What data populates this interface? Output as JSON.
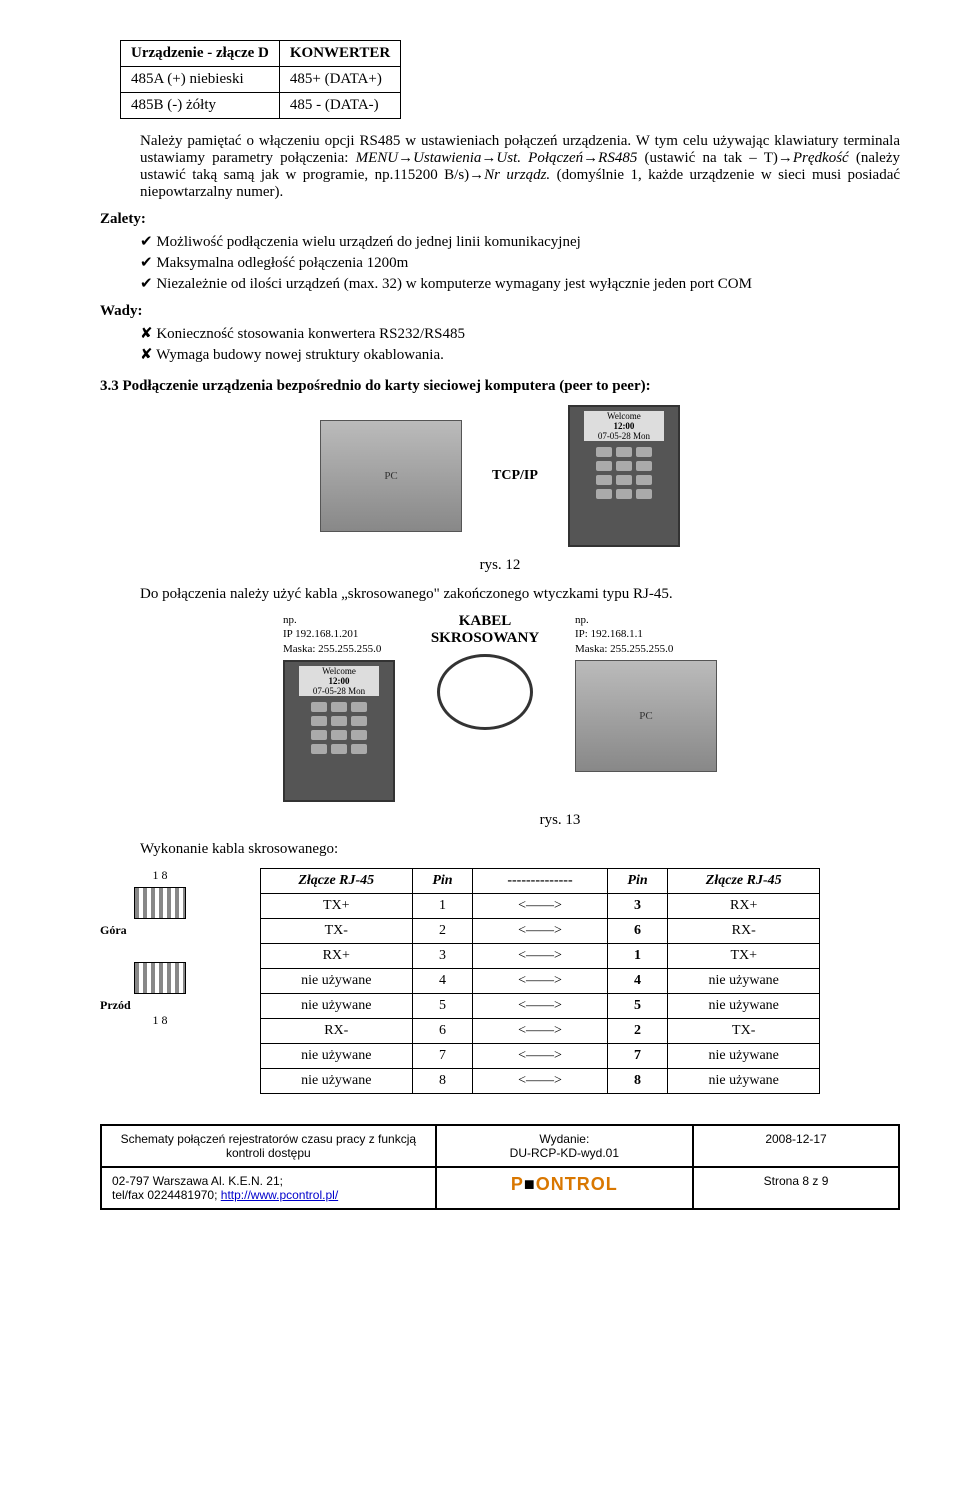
{
  "table1": {
    "r1c1": "Urządzenie - złącze D",
    "r1c2": "KONWERTER",
    "r2c1": "485A (+) niebieski",
    "r2c2": "485+ (DATA+)",
    "r3c1": "485B (-) żółty",
    "r3c2": "485 - (DATA-)"
  },
  "para1a": "Należy pamiętać o włączeniu opcji RS485 w ustawieniach połączeń urządzenia. W tym celu używając klawiatury terminala ustawiamy parametry połączenia: ",
  "para1b": "MENU→Ustawienia→Ust. Połączeń→RS485",
  "para1c": " (ustawić na tak – T)",
  "para1d": "→Prędkość",
  "para1e": " (należy ustawić taką samą jak w programie, np.115200 B/s)",
  "para1f": "→Nr urządz.",
  "para1g": " (domyślnie 1, każde urządzenie w sieci musi posiadać niepowtarzalny numer).",
  "zaletyLabel": "Zalety:",
  "zalety": [
    "Możliwość podłączenia wielu urządzeń do jednej linii komunikacyjnej",
    "Maksymalna odległość połączenia 1200m",
    "Niezależnie od ilości urządzeń (max. 32) w komputerze wymagany jest wyłącznie jeden port COM"
  ],
  "wadyLabel": "Wady:",
  "wady": [
    "Konieczność stosowania konwertera RS232/RS485",
    "Wymaga budowy nowej struktury okablowania."
  ],
  "section33": "3.3 Podłączenie urządzenia bezpośrednio do karty sieciowej komputera (peer to peer):",
  "diag1": {
    "conn": "TCP/IP",
    "devLine1": "Welcome",
    "devLine2": "12:00",
    "devLine3": "07-05-28 Mon"
  },
  "caption12": "rys. 12",
  "para2": "Do połączenia należy użyć kabla „skrosowanego\" zakończonego wtyczkami typu RJ-45.",
  "diag2": {
    "leftIP": "np.\nIP 192.168.1.201\nMaska: 255.255.255.0",
    "cableTitle": "KABEL\nSKROSOWANY",
    "rightIP": "np.\nIP: 192.168.1.1\nMaska: 255.255.255.0"
  },
  "caption13": "rys. 13",
  "wykonanie": "Wykonanie kabla skrosowanego:",
  "rj45": {
    "gora": "Góra",
    "przod": "Przód",
    "nums": "1   8"
  },
  "pinTable": {
    "headers": [
      "Złącze RJ-45",
      "Pin",
      "--------------",
      "Pin",
      "Złącze RJ-45"
    ],
    "rows": [
      [
        "TX+",
        "1",
        "<——>",
        "3",
        "RX+"
      ],
      [
        "TX-",
        "2",
        "<——>",
        "6",
        "RX-"
      ],
      [
        "RX+",
        "3",
        "<——>",
        "1",
        "TX+"
      ],
      [
        "nie używane",
        "4",
        "<——>",
        "4",
        "nie używane"
      ],
      [
        "nie używane",
        "5",
        "<——>",
        "5",
        "nie używane"
      ],
      [
        "RX-",
        "6",
        "<——>",
        "2",
        "TX-"
      ],
      [
        "nie używane",
        "7",
        "<——>",
        "7",
        "nie używane"
      ],
      [
        "nie używane",
        "8",
        "<——>",
        "8",
        "nie używane"
      ]
    ]
  },
  "footer": {
    "title": "Schematy połączeń rejestratorów czasu pracy z funkcją kontroli dostępu",
    "wydanieLabel": "Wydanie:",
    "wydanie": "DU-RCP-KD-wyd.01",
    "date": "2008-12-17",
    "addr": "02-797 Warszawa Al. K.E.N. 21;\ntel/fax 0224481970; ",
    "url": "http://www.pcontrol.pl/",
    "page": "Strona 8 z 9"
  }
}
